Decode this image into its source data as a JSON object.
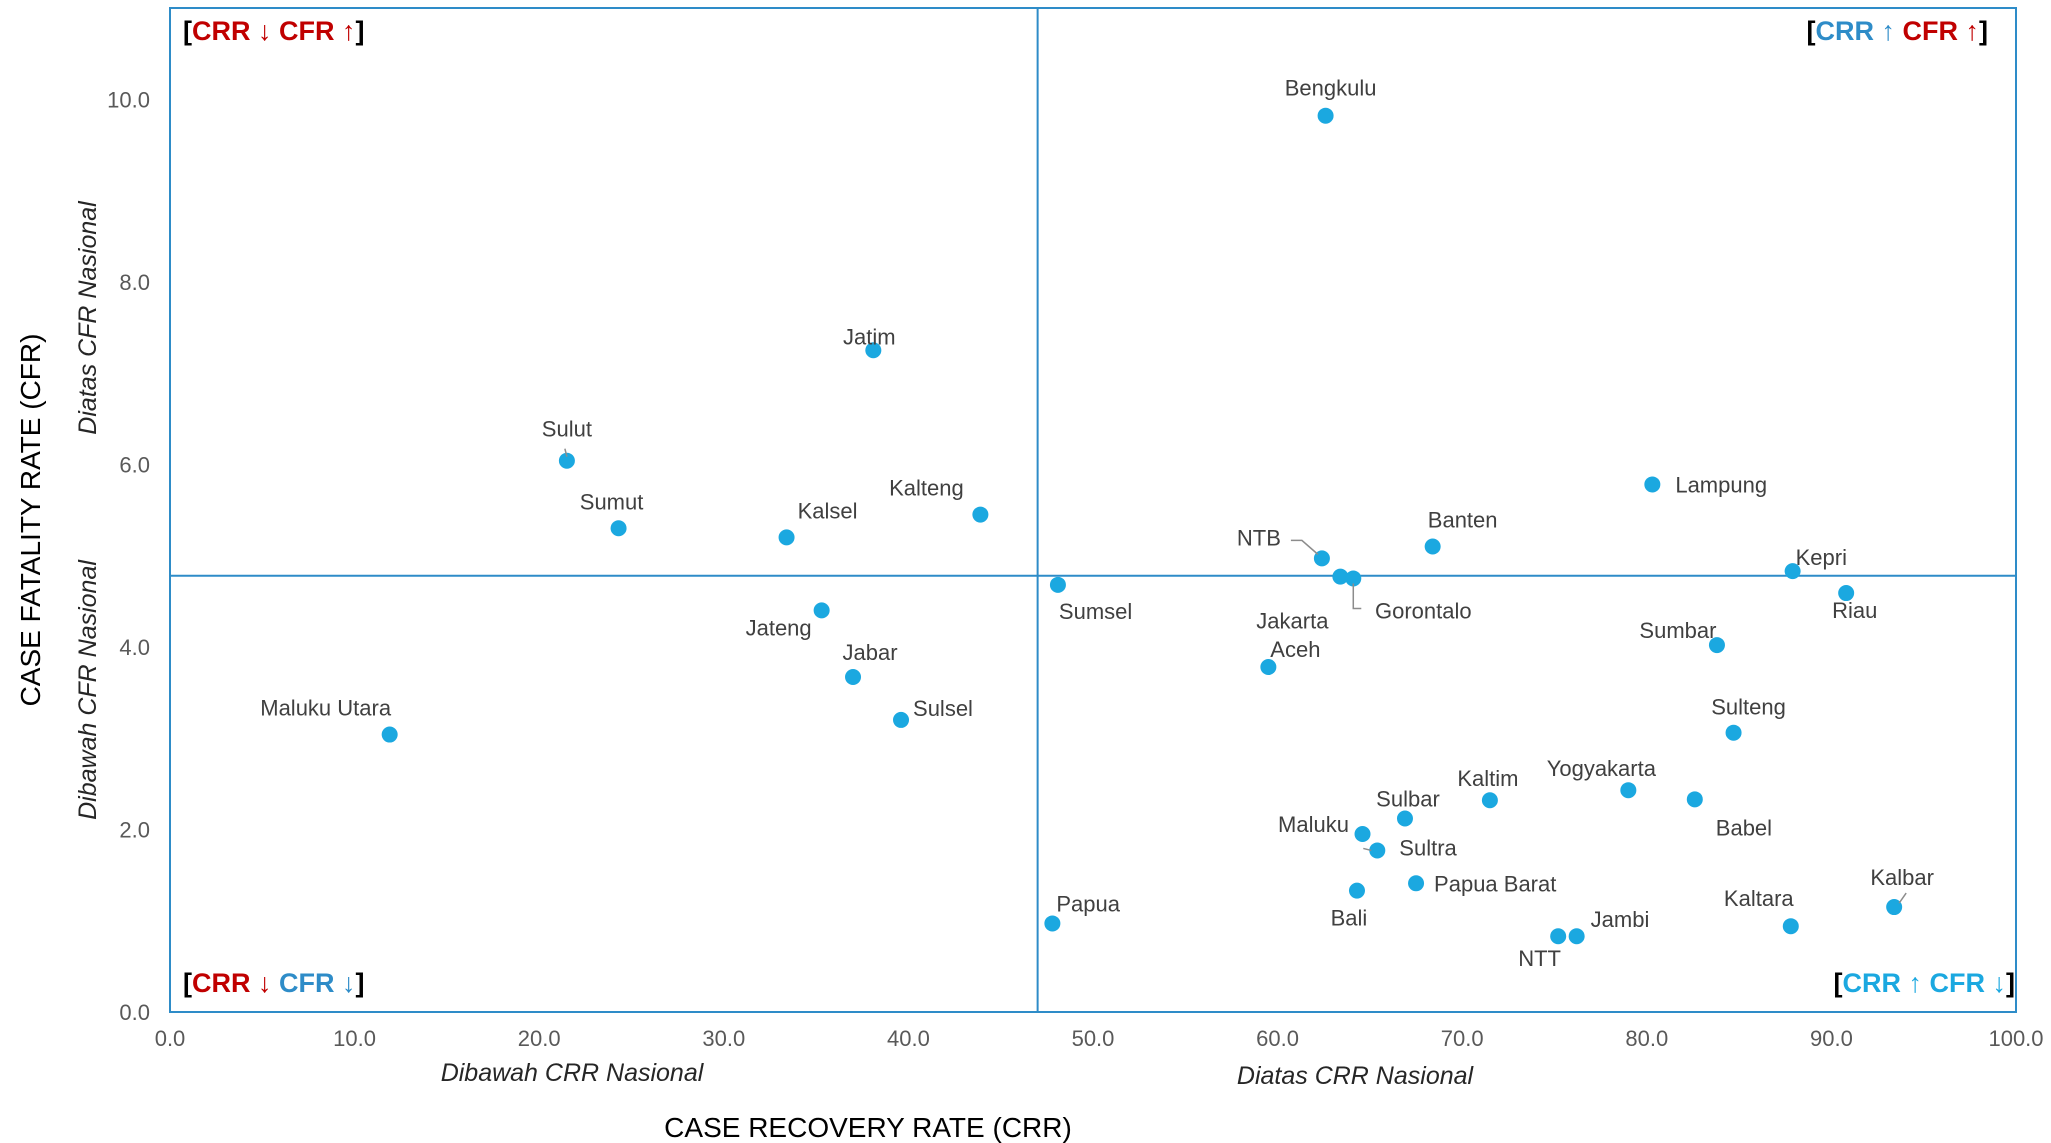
{
  "chart_data": {
    "type": "scatter",
    "xlabel": "CASE RECOVERY RATE (CRR)",
    "ylabel": "CASE FATALITY RATE (CFR)",
    "xlim": [
      0,
      100
    ],
    "ylim": [
      0,
      11
    ],
    "x_ticks": [
      "0.0",
      "10.0",
      "20.0",
      "30.0",
      "40.0",
      "50.0",
      "60.0",
      "70.0",
      "80.0",
      "90.0",
      "100.0"
    ],
    "y_ticks": [
      "0.0",
      "2.0",
      "4.0",
      "6.0",
      "8.0",
      "10.0"
    ],
    "grid": false,
    "reference_lines": {
      "x": 47.0,
      "y": 4.78
    },
    "point_color": "#1BA8E0",
    "line_color": "#2E8CC8",
    "side_labels": {
      "x_left": "Dibawah CRR Nasional",
      "x_right": "Diatas CRR Nasional",
      "y_top": "Diatas CFR Nasional",
      "y_bottom": "Dibawah CFR Nasional"
    },
    "quadrants": {
      "top_left": [
        {
          "t": "[",
          "c": "#000000"
        },
        {
          "t": "CRR ↓ ",
          "c": "#C00000"
        },
        {
          "t": "CFR ↑",
          "c": "#C00000"
        },
        {
          "t": "]",
          "c": "#000000"
        }
      ],
      "top_right": [
        {
          "t": "[",
          "c": "#000000"
        },
        {
          "t": "CRR ↑ ",
          "c": "#2E8CC8"
        },
        {
          "t": "CFR ↑",
          "c": "#C00000"
        },
        {
          "t": "]",
          "c": "#000000"
        }
      ],
      "bottom_left": [
        {
          "t": "[",
          "c": "#000000"
        },
        {
          "t": "CRR ↓ ",
          "c": "#C00000"
        },
        {
          "t": "CFR ↓",
          "c": "#2E8CC8"
        },
        {
          "t": "]",
          "c": "#000000"
        }
      ],
      "bottom_right": [
        {
          "t": "[",
          "c": "#000000"
        },
        {
          "t": "CRR ↑ CFR ↓",
          "c": "#1BA8E0"
        },
        {
          "t": "]",
          "c": "#000000"
        }
      ]
    },
    "points": [
      {
        "name": "Bengkulu",
        "x": 62.6,
        "y": 9.82
      },
      {
        "name": "Jatim",
        "x": 38.1,
        "y": 7.25
      },
      {
        "name": "Sulut",
        "x": 21.5,
        "y": 6.04
      },
      {
        "name": "Sumut",
        "x": 24.3,
        "y": 5.3
      },
      {
        "name": "Kalsel",
        "x": 33.4,
        "y": 5.2
      },
      {
        "name": "Kalteng",
        "x": 43.9,
        "y": 5.45
      },
      {
        "name": "Lampung",
        "x": 80.3,
        "y": 5.78
      },
      {
        "name": "Banten",
        "x": 68.4,
        "y": 5.1
      },
      {
        "name": "NTB",
        "x": 62.4,
        "y": 4.97
      },
      {
        "name": "Jakarta",
        "x": 63.4,
        "y": 4.77
      },
      {
        "name": "Gorontalo",
        "x": 64.1,
        "y": 4.75
      },
      {
        "name": "Sumsel",
        "x": 48.1,
        "y": 4.68
      },
      {
        "name": "Kepri",
        "x": 87.9,
        "y": 4.83
      },
      {
        "name": "Riau",
        "x": 90.8,
        "y": 4.59
      },
      {
        "name": "Jateng",
        "x": 35.3,
        "y": 4.4
      },
      {
        "name": "Sumbar",
        "x": 83.8,
        "y": 4.02
      },
      {
        "name": "Aceh",
        "x": 59.5,
        "y": 3.78
      },
      {
        "name": "Jabar",
        "x": 37.0,
        "y": 3.67
      },
      {
        "name": "Sulsel",
        "x": 39.6,
        "y": 3.2
      },
      {
        "name": "Maluku Utara",
        "x": 11.9,
        "y": 3.04
      },
      {
        "name": "Sulteng",
        "x": 84.7,
        "y": 3.06
      },
      {
        "name": "Yogyakarta",
        "x": 79.0,
        "y": 2.43
      },
      {
        "name": "Babel",
        "x": 82.6,
        "y": 2.33
      },
      {
        "name": "Kaltim",
        "x": 71.5,
        "y": 2.32
      },
      {
        "name": "Sulbar",
        "x": 66.9,
        "y": 2.12
      },
      {
        "name": "Maluku",
        "x": 64.6,
        "y": 1.95
      },
      {
        "name": "Sultra",
        "x": 65.4,
        "y": 1.77
      },
      {
        "name": "Papua Barat",
        "x": 67.5,
        "y": 1.41
      },
      {
        "name": "Bali",
        "x": 64.3,
        "y": 1.33
      },
      {
        "name": "Kalbar",
        "x": 93.4,
        "y": 1.15
      },
      {
        "name": "Papua",
        "x": 47.8,
        "y": 0.97
      },
      {
        "name": "Kaltara",
        "x": 87.8,
        "y": 0.94
      },
      {
        "name": "NTT",
        "x": 75.2,
        "y": 0.83
      },
      {
        "name": "Jambi",
        "x": 76.2,
        "y": 0.83
      }
    ]
  }
}
